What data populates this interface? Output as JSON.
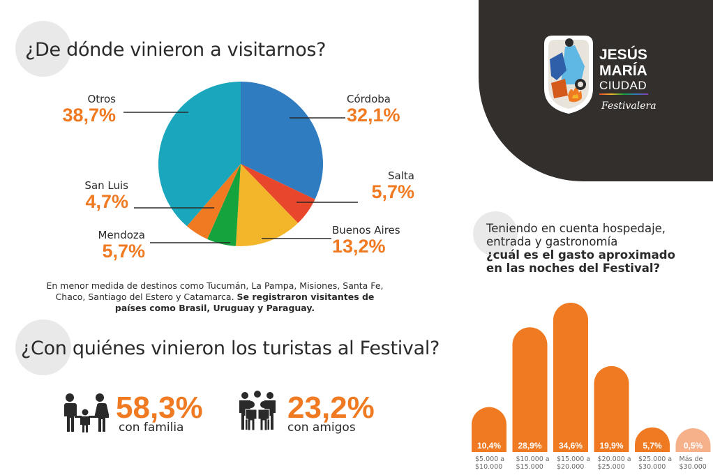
{
  "section1": {
    "title": "¿De dónde vinieron a visitarnos?",
    "note_regular": "En menor medida de destinos como Tucumán, La Pampa, Misiones, Santa Fe, Chaco, Santiago del Estero y Catamarca.",
    "note_bold": "Se registraron visitantes de países como Brasil, Uruguay y Paraguay."
  },
  "section2": {
    "title": "¿Con quiénes vinieron los turistas al Festival?",
    "family_pct": "58,3%",
    "family_label": "con familia",
    "friends_pct": "23,2%",
    "friends_label": "con amigos",
    "family_icon": "family-icon",
    "friends_icon": "group-icon"
  },
  "logo": {
    "line1": "JESÚS",
    "line2": "MARÍA",
    "line3": "CIUDAD",
    "tagline": "Festivalera"
  },
  "question": {
    "line1": "Teniendo en cuenta hospedaje,",
    "line2": "entrada y gastronomía",
    "line3": "¿cuál es el gasto aproximado",
    "line4": "en las noches del Festival?"
  },
  "chart_data": [
    {
      "type": "pie",
      "slices": [
        {
          "label": "Córdoba",
          "value": 32.1,
          "display": "32,1%",
          "color": "#2f7cc1"
        },
        {
          "label": "Salta",
          "value": 5.7,
          "display": "5,7%",
          "color": "#e8472c"
        },
        {
          "label": "Buenos Aires",
          "value": 13.2,
          "display": "13,2%",
          "color": "#f3b52a"
        },
        {
          "label": "Mendoza",
          "value": 5.7,
          "display": "5,7%",
          "color": "#15a33d"
        },
        {
          "label": "San Luis",
          "value": 4.7,
          "display": "4,7%",
          "color": "#f07a22"
        },
        {
          "label": "Otros",
          "value": 38.7,
          "display": "38,7%",
          "color": "#1aa6bd"
        }
      ]
    },
    {
      "type": "bar",
      "categories": [
        [
          "$5.000 a",
          "$10.000"
        ],
        [
          "$10.000 a",
          "$15.000"
        ],
        [
          "$15.000 a",
          "$20.000"
        ],
        [
          "$20.000 a",
          "$25.000"
        ],
        [
          "$25.000 a",
          "$30.000"
        ],
        [
          "Más de",
          "$30.000"
        ]
      ],
      "values": [
        10.4,
        28.9,
        34.6,
        19.9,
        5.7,
        0.5
      ],
      "labels": [
        "10,4%",
        "28,9%",
        "34,6%",
        "19,9%",
        "5,7%",
        "0,5%"
      ],
      "colors": [
        "#f07a22",
        "#f07a22",
        "#f07a22",
        "#f07a22",
        "#f07a22",
        "#f6b08a"
      ]
    }
  ]
}
